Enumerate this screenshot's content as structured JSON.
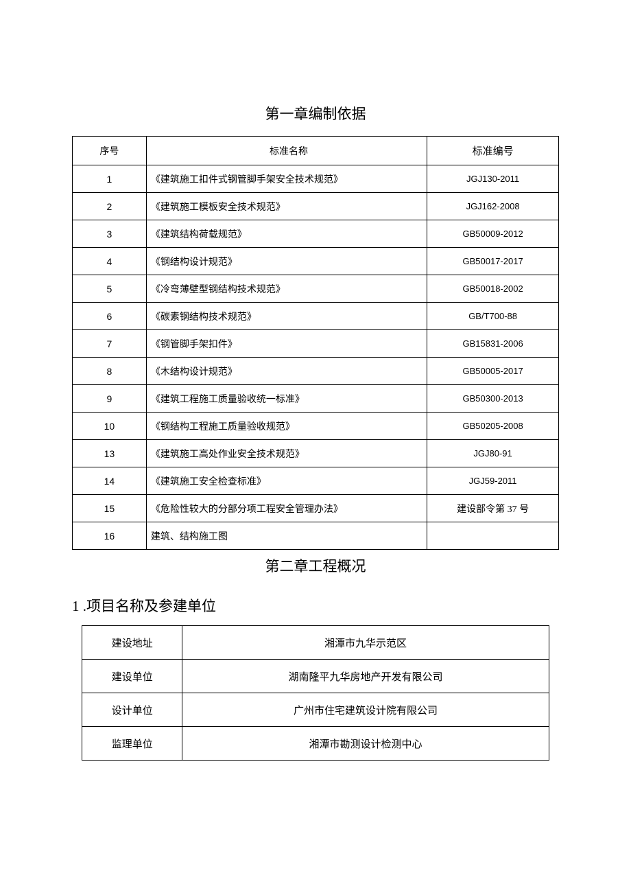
{
  "chapter1": {
    "title": "第一章编制依据",
    "headers": {
      "seq": "序号",
      "name": "标准名称",
      "code": "标准编号"
    },
    "rows": [
      {
        "seq": "1",
        "name": "《建筑施工扣件式钢管脚手架安全技术规范》",
        "code": "JGJ130-2011"
      },
      {
        "seq": "2",
        "name": "《建筑施工模板安全技术规范》",
        "code": "JGJ162-2008"
      },
      {
        "seq": "3",
        "name": "《建筑结构荷载规范》",
        "code": "GB50009-2012"
      },
      {
        "seq": "4",
        "name": "《钢结构设计规范》",
        "code": "GB50017-2017"
      },
      {
        "seq": "5",
        "name": "《冷弯薄壁型钢结构技术规范》",
        "code": "GB50018-2002"
      },
      {
        "seq": "6",
        "name": "《碳素钢结构技术规范》",
        "code": "GB/T700-88"
      },
      {
        "seq": "7",
        "name": "《钢管脚手架扣件》",
        "code": "GB15831-2006"
      },
      {
        "seq": "8",
        "name": "《木结构设计规范》",
        "code": "GB50005-2017"
      },
      {
        "seq": "9",
        "name": "《建筑工程施工质量验收统一标准》",
        "code": "GB50300-2013"
      },
      {
        "seq": "10",
        "name": "《钢结构工程施工质量验收规范》",
        "code": "GB50205-2008"
      },
      {
        "seq": "13",
        "name": "《建筑施工高处作业安全技术规范》",
        "code": "JGJ80-91"
      },
      {
        "seq": "14",
        "name": "《建筑施工安全检查标准》",
        "code": "JGJ59-2011"
      },
      {
        "seq": "15",
        "name": "《危险性较大的分部分项工程安全管理办法》",
        "code": "建设部令第 37 号",
        "cn": true
      },
      {
        "seq": "16",
        "name": "建筑、结构施工图",
        "code": ""
      }
    ]
  },
  "chapter2": {
    "title": "第二章工程概况",
    "section1": {
      "title": "1 .项目名称及参建单位",
      "rows": [
        {
          "label": "建设地址",
          "value": "湘潭市九华示范区"
        },
        {
          "label": "建设单位",
          "value": "湖南隆平九华房地产开发有限公司"
        },
        {
          "label": "设计单位",
          "value": "广州市住宅建筑设计院有限公司"
        },
        {
          "label": "监理单位",
          "value": "湘潭市勘测设计检测中心"
        }
      ]
    }
  }
}
